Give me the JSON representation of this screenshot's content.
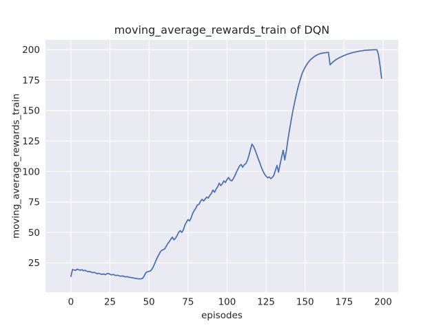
{
  "figure": {
    "background": "#ffffff"
  },
  "chart_data": {
    "type": "line",
    "title": "moving_average_rewards_train of DQN",
    "xlabel": "episodes",
    "ylabel": "moving_average_rewards_train",
    "x_ticks": [
      0,
      25,
      50,
      75,
      100,
      125,
      150,
      175,
      200
    ],
    "y_ticks": [
      25,
      50,
      75,
      100,
      125,
      150,
      175,
      200
    ],
    "xlim": [
      -16.3,
      209.7
    ],
    "ylim": [
      1,
      208
    ],
    "grid": true,
    "legend_position": "none",
    "axes_background": "#eaeaf2",
    "grid_color": "#ffffff",
    "text_color": "#262626",
    "series": [
      {
        "name": "DQN moving_average_rewards_train",
        "color": "#4c72b0",
        "line_width": 1.8,
        "x_start": 0,
        "x_step": 1,
        "values": [
          14.0,
          19.6,
          19.2,
          18.9,
          19.9,
          19.4,
          19.0,
          19.5,
          18.6,
          19.0,
          18.3,
          17.8,
          18.1,
          17.4,
          17.0,
          17.3,
          16.6,
          16.2,
          16.5,
          15.9,
          15.6,
          16.0,
          15.3,
          16.1,
          16.4,
          15.7,
          15.2,
          15.6,
          15.0,
          14.7,
          14.9,
          14.4,
          14.1,
          14.3,
          13.9,
          13.6,
          13.8,
          13.3,
          13.1,
          12.9,
          12.7,
          12.4,
          12.2,
          12.0,
          11.9,
          12.0,
          12.4,
          14.5,
          17.0,
          17.8,
          18.1,
          18.5,
          20.0,
          22.5,
          25.5,
          28.5,
          31.0,
          33.5,
          35.2,
          35.8,
          36.5,
          38.5,
          40.8,
          42.5,
          44.5,
          46.2,
          44.0,
          45.2,
          47.5,
          50.0,
          51.5,
          50.0,
          52.0,
          56.0,
          58.5,
          60.5,
          59.5,
          62.0,
          65.5,
          68.0,
          70.0,
          72.5,
          73.0,
          75.5,
          77.2,
          75.8,
          77.5,
          79.0,
          78.2,
          80.5,
          82.0,
          84.8,
          83.0,
          85.5,
          87.6,
          90.4,
          88.5,
          90.0,
          92.3,
          91.0,
          93.5,
          95.1,
          93.0,
          92.3,
          94.0,
          96.5,
          99.5,
          102.0,
          104.5,
          105.8,
          103.5,
          105.5,
          106.5,
          109.0,
          113.0,
          118.0,
          122.5,
          120.5,
          117.5,
          114.0,
          110.5,
          107.0,
          103.5,
          100.5,
          98.0,
          96.2,
          94.8,
          95.6,
          94.2,
          95.2,
          96.8,
          101.0,
          105.0,
          99.5,
          106.0,
          112.0,
          117.5,
          109.5,
          117.0,
          126.0,
          134.0,
          141.5,
          148.5,
          155.0,
          161.0,
          166.5,
          171.5,
          176.0,
          180.0,
          183.0,
          185.5,
          187.7,
          189.5,
          191.0,
          192.3,
          193.4,
          194.4,
          195.2,
          195.9,
          196.4,
          196.8,
          197.1,
          197.3,
          197.5,
          197.6,
          197.7,
          187.5,
          188.8,
          190.0,
          191.0,
          191.9,
          192.7,
          193.4,
          194.0,
          194.6,
          195.2,
          195.7,
          196.2,
          196.6,
          197.0,
          197.4,
          197.7,
          198.0,
          198.3,
          198.6,
          198.8,
          199.0,
          199.2,
          199.4,
          199.5,
          199.6,
          199.7,
          199.75,
          199.8,
          199.85,
          199.9,
          199.9,
          196.0,
          187.0,
          176.5
        ]
      }
    ]
  }
}
